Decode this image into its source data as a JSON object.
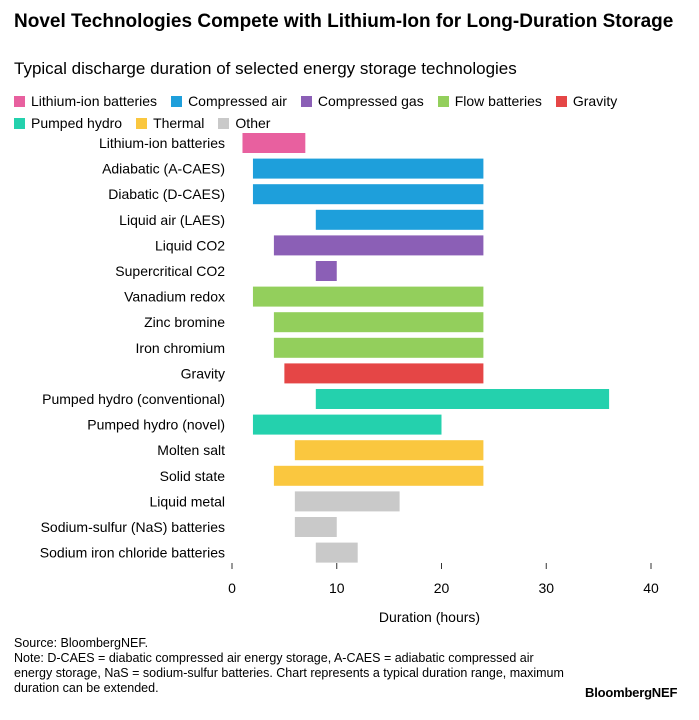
{
  "title": "Novel Technologies Compete with Lithium-Ion for Long-Duration Storage",
  "subtitle": "Typical discharge duration of selected energy storage technologies",
  "legend": [
    {
      "label": "Lithium-ion batteries",
      "color": "#e8609f"
    },
    {
      "label": "Compressed air",
      "color": "#1e9fdb"
    },
    {
      "label": "Compressed gas",
      "color": "#8b5fb6"
    },
    {
      "label": "Flow batteries",
      "color": "#93cf5c"
    },
    {
      "label": "Gravity",
      "color": "#e54646"
    },
    {
      "label": "Pumped hydro",
      "color": "#24d1ad"
    },
    {
      "label": "Thermal",
      "color": "#fac73f"
    },
    {
      "label": "Other",
      "color": "#c9c9c9"
    }
  ],
  "chart_data": {
    "type": "bar",
    "orientation": "horizontal-range",
    "xlabel": "Duration (hours)",
    "xlim": [
      0,
      40
    ],
    "xticks": [
      0,
      10,
      20,
      30,
      40
    ],
    "grid": false,
    "legend_placement": "top",
    "rows": [
      {
        "label": "Lithium-ion batteries",
        "group": "Lithium-ion batteries",
        "start": 1,
        "end": 7
      },
      {
        "label": "Adiabatic (A-CAES)",
        "group": "Compressed air",
        "start": 2,
        "end": 24
      },
      {
        "label": "Diabatic (D-CAES)",
        "group": "Compressed air",
        "start": 2,
        "end": 24
      },
      {
        "label": "Liquid air (LAES)",
        "group": "Compressed air",
        "start": 8,
        "end": 24
      },
      {
        "label": "Liquid CO2",
        "group": "Compressed gas",
        "start": 4,
        "end": 24
      },
      {
        "label": "Supercritical CO2",
        "group": "Compressed gas",
        "start": 8,
        "end": 10
      },
      {
        "label": "Vanadium redox",
        "group": "Flow batteries",
        "start": 2,
        "end": 24
      },
      {
        "label": "Zinc bromine",
        "group": "Flow batteries",
        "start": 4,
        "end": 24
      },
      {
        "label": "Iron chromium",
        "group": "Flow batteries",
        "start": 4,
        "end": 24
      },
      {
        "label": "Gravity",
        "group": "Gravity",
        "start": 5,
        "end": 24
      },
      {
        "label": "Pumped hydro (conventional)",
        "group": "Pumped hydro",
        "start": 8,
        "end": 36
      },
      {
        "label": "Pumped hydro (novel)",
        "group": "Pumped hydro",
        "start": 2,
        "end": 20
      },
      {
        "label": "Molten salt",
        "group": "Thermal",
        "start": 6,
        "end": 24
      },
      {
        "label": "Solid state",
        "group": "Thermal",
        "start": 4,
        "end": 24
      },
      {
        "label": "Liquid metal",
        "group": "Other",
        "start": 6,
        "end": 16
      },
      {
        "label": "Sodium-sulfur (NaS) batteries",
        "group": "Other",
        "start": 6,
        "end": 10
      },
      {
        "label": "Sodium iron chloride batteries",
        "group": "Other",
        "start": 8,
        "end": 12
      }
    ]
  },
  "footer": {
    "source": "Source: BloombergNEF.",
    "note": "Note: D-CAES = diabatic compressed air energy storage, A-CAES = adiabatic compressed air energy storage, NaS = sodium-sulfur batteries. Chart represents a typical duration range, maximum duration can be extended."
  },
  "brand": "BloombergNEF"
}
